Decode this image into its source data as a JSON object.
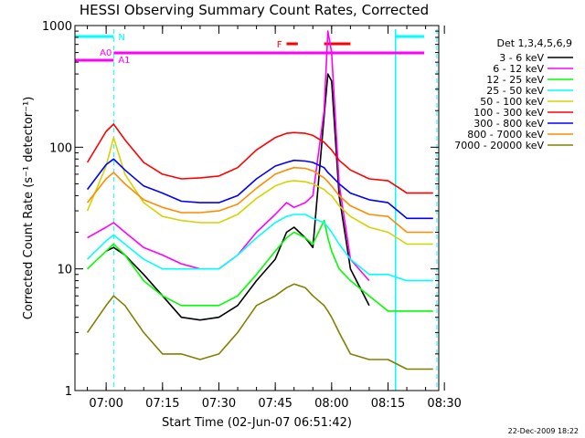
{
  "chart_data": {
    "type": "line",
    "title": "HESSI Observing Summary Count Rates, Corrected",
    "xlabel": "Start Time (02-Jun-07 06:51:42)",
    "ylabel": "Corrected Count Rate (s⁻¹ detector⁻¹)",
    "y_scale": "log",
    "ylim": [
      1,
      1000
    ],
    "xlim": [
      "06:51:42",
      "08:28:30"
    ],
    "x_ticks": [
      "07:00",
      "07:15",
      "07:30",
      "07:45",
      "08:00",
      "08:15",
      "08:30"
    ],
    "y_ticks": [
      "1",
      "10",
      "100",
      "1000"
    ],
    "legend_title": "Det 1,3,4,5,6,9",
    "legend_position": "right",
    "footer_date": "22-Dec-2009 18:22",
    "annotations": [
      {
        "label": "N",
        "color": "#00ffff"
      },
      {
        "label": "A0",
        "color": "#ff00ff"
      },
      {
        "label": "A1",
        "color": "#ff00ff"
      },
      {
        "label": "F",
        "color": "#ff0000"
      }
    ],
    "x": [
      "06:55",
      "07:00",
      "07:02",
      "07:05",
      "07:10",
      "07:15",
      "07:20",
      "07:25",
      "07:30",
      "07:35",
      "07:40",
      "07:45",
      "07:48",
      "07:50",
      "07:53",
      "07:55",
      "07:58",
      "07:59",
      "08:00",
      "08:02",
      "08:05",
      "08:10",
      "08:15",
      "08:20",
      "08:27"
    ],
    "series": [
      {
        "name": "3 - 6 keV",
        "color": "#000000",
        "values": [
          null,
          14,
          15,
          13,
          9,
          6,
          4,
          3.8,
          4,
          5,
          8,
          12,
          20,
          22,
          18,
          15,
          180,
          400,
          350,
          40,
          10,
          5,
          null,
          null,
          null
        ]
      },
      {
        "name": "6 - 12 keV",
        "color": "#ff00ff",
        "values": [
          18,
          22,
          24,
          20,
          15,
          13,
          11,
          10,
          10,
          13,
          20,
          28,
          35,
          32,
          35,
          40,
          200,
          900,
          600,
          50,
          12,
          8,
          null,
          null,
          null
        ]
      },
      {
        "name": "12 - 25 keV",
        "color": "#00ff00",
        "values": [
          10,
          14,
          16,
          13,
          8,
          6,
          5,
          5,
          5,
          6,
          9,
          14,
          18,
          20,
          18,
          16,
          25,
          18,
          14,
          10,
          8,
          6,
          4.5,
          4.5,
          4.5
        ]
      },
      {
        "name": "25 - 50 keV",
        "color": "#00ffff",
        "values": [
          12,
          17,
          19,
          16,
          12,
          10,
          10,
          10,
          10,
          13,
          18,
          24,
          27,
          28,
          28,
          26,
          24,
          22,
          20,
          16,
          12,
          9,
          9,
          8,
          8
        ]
      },
      {
        "name": "50 - 100 keV",
        "color": "#d4d400",
        "values": [
          30,
          70,
          120,
          60,
          35,
          27,
          25,
          24,
          24,
          28,
          38,
          48,
          52,
          53,
          52,
          50,
          45,
          42,
          40,
          33,
          27,
          22,
          20,
          16,
          16
        ]
      },
      {
        "name": "100 - 300 keV",
        "color": "#ff0000",
        "values": [
          75,
          135,
          155,
          115,
          75,
          60,
          55,
          56,
          58,
          68,
          95,
          120,
          130,
          132,
          130,
          125,
          110,
          102,
          95,
          78,
          65,
          55,
          53,
          42,
          42
        ]
      },
      {
        "name": "300 - 800 keV",
        "color": "#0000ff",
        "values": [
          45,
          72,
          80,
          65,
          48,
          42,
          36,
          35,
          35,
          40,
          55,
          70,
          75,
          78,
          77,
          75,
          68,
          62,
          58,
          50,
          42,
          37,
          35,
          26,
          26
        ]
      },
      {
        "name": "800 - 7000 keV",
        "color": "#ff8c00",
        "values": [
          35,
          55,
          62,
          50,
          37,
          32,
          29,
          29,
          30,
          34,
          46,
          60,
          65,
          68,
          67,
          64,
          56,
          52,
          48,
          40,
          33,
          28,
          27,
          20,
          20
        ]
      },
      {
        "name": "7000 - 20000 keV",
        "color": "#808000",
        "values": [
          3,
          5,
          6,
          5,
          3,
          2,
          2,
          1.8,
          2,
          3,
          5,
          6,
          7,
          7.5,
          7,
          6,
          5,
          4.5,
          4,
          3,
          2,
          1.8,
          1.8,
          1.5,
          1.5
        ]
      }
    ]
  }
}
